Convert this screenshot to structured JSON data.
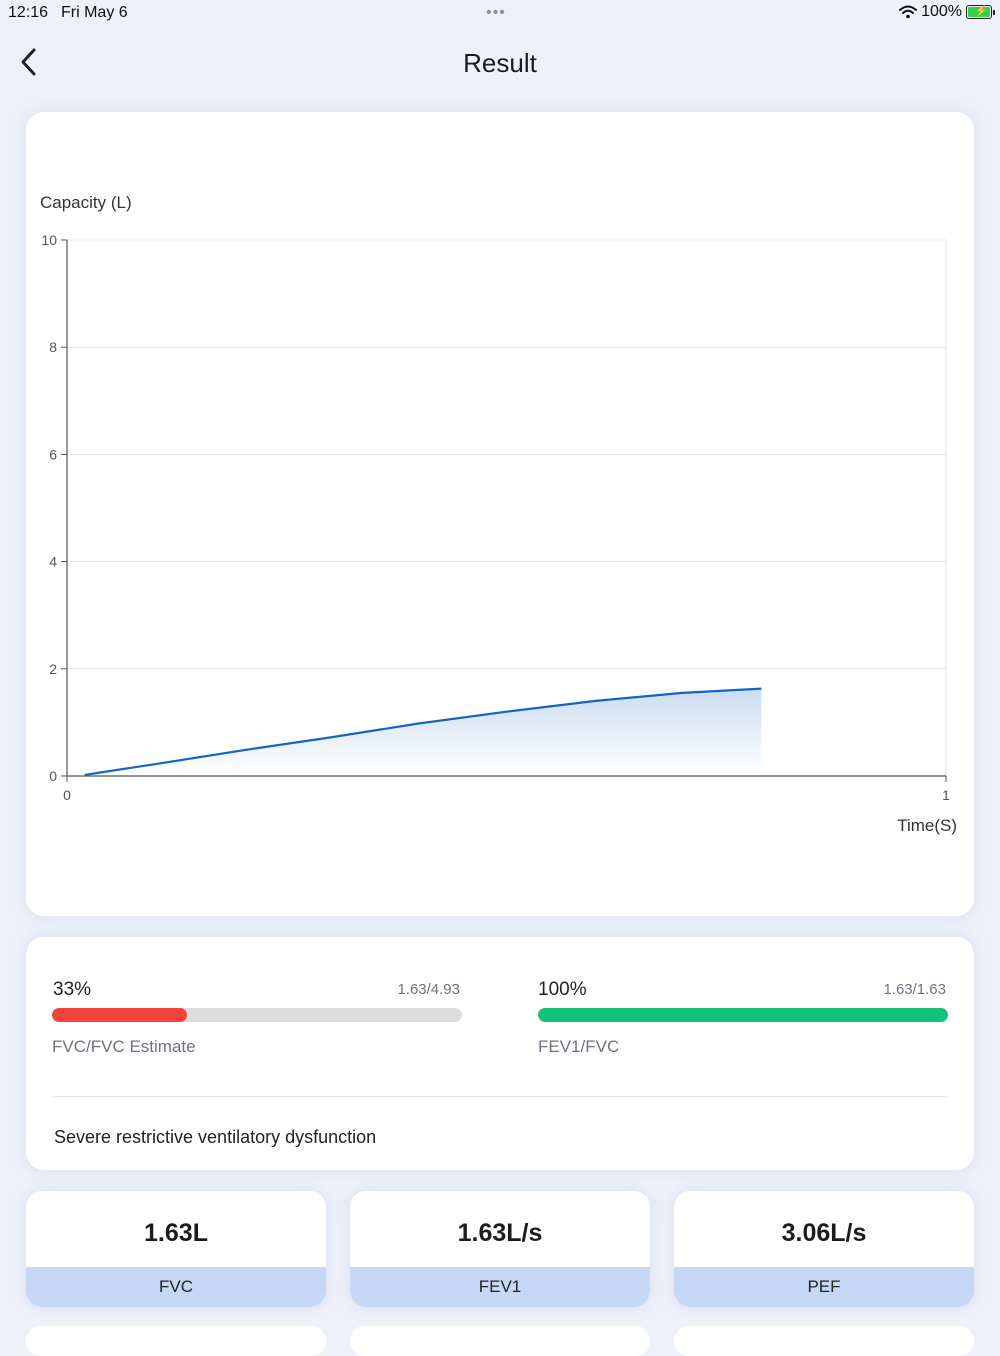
{
  "status_bar": {
    "time": "12:16",
    "date": "Fri May 6",
    "dots": "•••",
    "battery": "100%"
  },
  "header": {
    "title": "Result"
  },
  "chart_data": {
    "type": "area",
    "ylabel": "Capacity (L)",
    "xlabel": "Time(S)",
    "xlim": [
      0,
      1
    ],
    "ylim": [
      0,
      10
    ],
    "x_ticks": [
      "0",
      "1"
    ],
    "y_ticks": [
      "0",
      "2",
      "4",
      "6",
      "8",
      "10"
    ],
    "grid": true,
    "series_color": "#1565c0",
    "x": [
      0.02,
      0.1,
      0.2,
      0.3,
      0.4,
      0.5,
      0.6,
      0.7,
      0.79
    ],
    "y": [
      0.02,
      0.22,
      0.48,
      0.72,
      0.98,
      1.2,
      1.4,
      1.55,
      1.63
    ]
  },
  "stats": {
    "fvc_ratio": {
      "percent_label": "33%",
      "percent_value": 33,
      "detail": "1.63/4.93",
      "label": "FVC/FVC Estimate",
      "color": "#f04438"
    },
    "fev1_ratio": {
      "percent_label": "100%",
      "percent_value": 100,
      "detail": "1.63/1.63",
      "label": "FEV1/FVC",
      "color": "#13c27a"
    },
    "diagnosis": "Severe restrictive ventilatory dysfunction"
  },
  "metrics": [
    {
      "value": "1.63L",
      "label": "FVC"
    },
    {
      "value": "1.63L/s",
      "label": "FEV1"
    },
    {
      "value": "3.06L/s",
      "label": "PEF"
    }
  ]
}
